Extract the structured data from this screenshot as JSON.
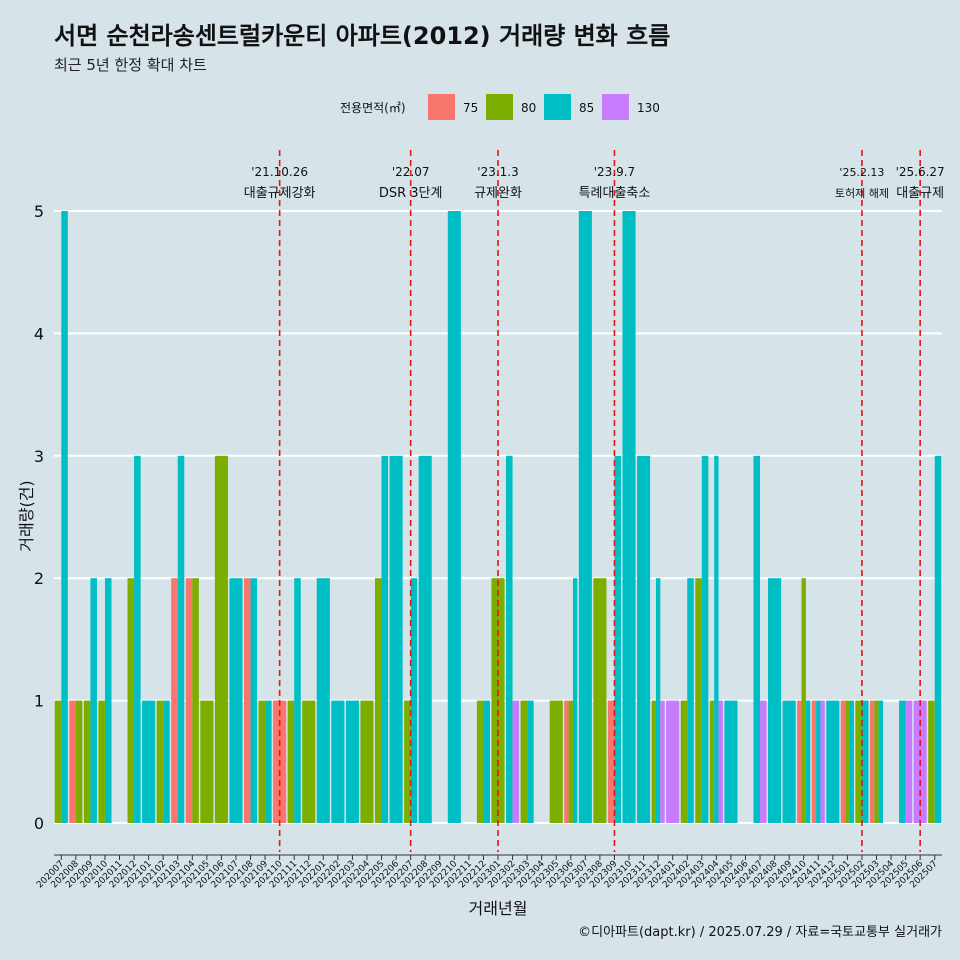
{
  "chart_data": {
    "type": "bar",
    "title": "서면 순천라송센트럴카운티 아파트(2012) 거래량 변화 흐름",
    "subtitle": "최근 5년 한정 확대 차트",
    "xlabel": "거래년월",
    "ylabel": "거래량(건)",
    "ylim": [
      0,
      5
    ],
    "yticks": [
      "0",
      "1",
      "2",
      "3",
      "4",
      "5"
    ],
    "legend": {
      "title": "전용면적(㎡)",
      "placement": "top",
      "entries": [
        {
          "name": "75",
          "color": "#f8766d"
        },
        {
          "name": "80",
          "color": "#7cae00"
        },
        {
          "name": "85",
          "color": "#00bfc4"
        },
        {
          "name": "130",
          "color": "#c77cff"
        }
      ]
    },
    "categories": [
      "202007",
      "202008",
      "202009",
      "202010",
      "202011",
      "202012",
      "202101",
      "202102",
      "202103",
      "202104",
      "202105",
      "202106",
      "202107",
      "202108",
      "202109",
      "202110",
      "202111",
      "202112",
      "202201",
      "202202",
      "202203",
      "202204",
      "202205",
      "202206",
      "202207",
      "202208",
      "202209",
      "202210",
      "202211",
      "202212",
      "202301",
      "202302",
      "202303",
      "202304",
      "202305",
      "202306",
      "202307",
      "202308",
      "202309",
      "202310",
      "202311",
      "202312",
      "202401",
      "202402",
      "202403",
      "202404",
      "202405",
      "202406",
      "202407",
      "202408",
      "202409",
      "202410",
      "202411",
      "202412",
      "202501",
      "202502",
      "202503",
      "202504",
      "202505",
      "202506",
      "202507"
    ],
    "series": [
      {
        "name": "75",
        "color": "#f8766d",
        "values": [
          0,
          1,
          0,
          0,
          0,
          0,
          0,
          0,
          2,
          2,
          0,
          0,
          0,
          2,
          0,
          1,
          0,
          0,
          0,
          0,
          0,
          0,
          0,
          0,
          0,
          0,
          0,
          0,
          0,
          0,
          0,
          0,
          0,
          0,
          0,
          1,
          0,
          0,
          1,
          0,
          0,
          0,
          0,
          0,
          0,
          0,
          0,
          0,
          0,
          0,
          0,
          1,
          1,
          0,
          1,
          0,
          1,
          0,
          0,
          0,
          0
        ]
      },
      {
        "name": "80",
        "color": "#7cae00",
        "values": [
          1,
          1,
          1,
          1,
          0,
          2,
          0,
          1,
          0,
          2,
          1,
          3,
          0,
          0,
          1,
          0,
          1,
          1,
          0,
          0,
          0,
          1,
          2,
          0,
          1,
          0,
          0,
          0,
          0,
          1,
          2,
          0,
          1,
          0,
          1,
          1,
          0,
          2,
          0,
          0,
          0,
          1,
          0,
          1,
          2,
          1,
          0,
          0,
          0,
          0,
          0,
          2,
          0,
          0,
          1,
          1,
          1,
          0,
          0,
          0,
          1
        ]
      },
      {
        "name": "85",
        "color": "#00bfc4",
        "values": [
          5,
          0,
          2,
          2,
          0,
          3,
          1,
          1,
          3,
          0,
          0,
          0,
          2,
          2,
          1,
          0,
          2,
          0,
          2,
          1,
          1,
          0,
          3,
          3,
          2,
          3,
          0,
          5,
          0,
          1,
          0,
          3,
          1,
          0,
          0,
          2,
          5,
          0,
          3,
          5,
          3,
          2,
          0,
          2,
          3,
          3,
          1,
          0,
          3,
          2,
          1,
          1,
          1,
          1,
          1,
          1,
          1,
          0,
          1,
          0,
          3
        ]
      },
      {
        "name": "130",
        "color": "#c77cff",
        "values": [
          0,
          0,
          0,
          0,
          0,
          0,
          0,
          0,
          0,
          0,
          0,
          0,
          0,
          0,
          0,
          0,
          0,
          0,
          0,
          0,
          0,
          0,
          0,
          0,
          0,
          0,
          0,
          0,
          0,
          0,
          0,
          1,
          0,
          0,
          0,
          0,
          0,
          0,
          0,
          0,
          0,
          1,
          1,
          0,
          0,
          1,
          0,
          0,
          1,
          0,
          0,
          0,
          1,
          0,
          0,
          0,
          0,
          0,
          1,
          1,
          0
        ]
      }
    ],
    "annotations": [
      {
        "category": "202110",
        "date": "'21.10.26",
        "label": "대출규제강화"
      },
      {
        "category": "202207",
        "date": "'22.07",
        "label": "DSR 3단계"
      },
      {
        "category": "202301",
        "date": "'23.1.3",
        "label": "규제완화"
      },
      {
        "category": "202309",
        "date": "'23.9.7",
        "label": "특례대출축소"
      },
      {
        "category": "202502",
        "date": "'25.2.13",
        "label": "토허제 해제"
      },
      {
        "category": "202506",
        "date": "'25.6.27",
        "label": "대출규제"
      }
    ],
    "caption": "©디아파트(dapt.kr) / 2025.07.29 / 자료=국토교통부 실거래가"
  }
}
